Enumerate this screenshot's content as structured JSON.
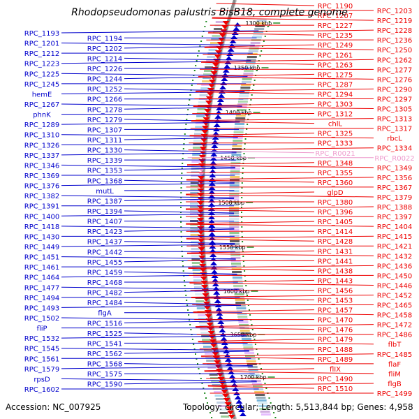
{
  "title": "Rhodopseudomonas palustris BisB18, complete genome",
  "accession_text": "Accession: NC_007925",
  "topology_text": "Topology: circular; Length: 5,513,844 bp; Genes: 4,958",
  "colors": {
    "minus_strand": "#0000cc",
    "plus_strand": "#ee0000",
    "rna": "#ee99cc",
    "backbone": "#888888",
    "tick": "#228b22"
  },
  "kbp_ticks": [
    "1300 kbp",
    "1350 kbp",
    "1400 kbp",
    "1450 kbp",
    "1500 kbp",
    "1550 kbp",
    "1600 kbp",
    "1650 kbp",
    "1700 kbp"
  ],
  "left_labels": [
    "RPC_1193",
    "RPC_1194",
    "RPC_1201",
    "RPC_1202",
    "RPC_1212",
    "RPC_1214",
    "RPC_1223",
    "RPC_1226",
    "RPC_1225",
    "RPC_1244",
    "RPC_1245",
    "RPC_1252",
    "hemE",
    "RPC_1266",
    "RPC_1267",
    "RPC_1278",
    "phnK",
    "RPC_1279",
    "RPC_1289",
    "RPC_1307",
    "RPC_1310",
    "RPC_1311",
    "RPC_1326",
    "RPC_1330",
    "RPC_1337",
    "RPC_1339",
    "RPC_1346",
    "RPC_1353",
    "RPC_1369",
    "RPC_1368",
    "RPC_1376",
    "mutL",
    "RPC_1382",
    "RPC_1387",
    "RPC_1391",
    "RPC_1394",
    "RPC_1400",
    "RPC_1407",
    "RPC_1418",
    "RPC_1423",
    "RPC_1430",
    "RPC_1437",
    "RPC_1449",
    "RPC_1442",
    "RPC_1451",
    "RPC_1455",
    "RPC_1461",
    "RPC_1459",
    "RPC_1464",
    "RPC_1468",
    "RPC_1477",
    "RPC_1482",
    "RPC_1494",
    "RPC_1484",
    "RPC_1493",
    "flgA",
    "RPC_1502",
    "RPC_1516",
    "fliP",
    "RPC_1525",
    "RPC_1532",
    "RPC_1541",
    "RPC_1545",
    "RPC_1562",
    "RPC_1561",
    "RPC_1568",
    "RPC_1579",
    "RPC_1575",
    "rpsD",
    "RPC_1590",
    "RPC_1602"
  ],
  "right_labels": [
    "RPC_1190",
    "RPC_1203",
    "RPC_1207",
    "RPC_1219",
    "RPC_1227",
    "RPC_1228",
    "RPC_1235",
    "RPC_1236",
    "RPC_1249",
    "RPC_1250",
    "RPC_1261",
    "RPC_1262",
    "RPC_1263",
    "RPC_1277",
    "RPC_1275",
    "RPC_1276",
    "RPC_1287",
    "RPC_1290",
    "RPC_1294",
    "RPC_1297",
    "RPC_1303",
    "RPC_1305",
    "RPC_1312",
    "RPC_1313",
    "chlL",
    "RPC_1317",
    "RPC_1325",
    "rbcL",
    "RPC_1333",
    "RPC_1334",
    "RPC_R0021",
    "RPC_R0022",
    "RPC_1348",
    "RPC_1349",
    "RPC_1355",
    "RPC_1356",
    "RPC_1360",
    "RPC_1367",
    "glpD",
    "RPC_1379",
    "RPC_1380",
    "RPC_1388",
    "RPC_1396",
    "RPC_1397",
    "RPC_1405",
    "RPC_1404",
    "RPC_1414",
    "RPC_1415",
    "RPC_1428",
    "RPC_1421",
    "RPC_1431",
    "RPC_1432",
    "RPC_1441",
    "RPC_1436",
    "RPC_1438",
    "RPC_1450",
    "RPC_1443",
    "RPC_1446",
    "RPC_1456",
    "RPC_1452",
    "RPC_1453",
    "RPC_1465",
    "RPC_1457",
    "RPC_1458",
    "RPC_1470",
    "RPC_1472",
    "RPC_1476",
    "RPC_1486",
    "RPC_1479",
    "flbT",
    "RPC_1488",
    "RPC_1485",
    "RPC_1489",
    "flaF",
    "flIX",
    "fliM",
    "RPC_1490",
    "flgB",
    "RPC_1510",
    "RPC_1499"
  ]
}
